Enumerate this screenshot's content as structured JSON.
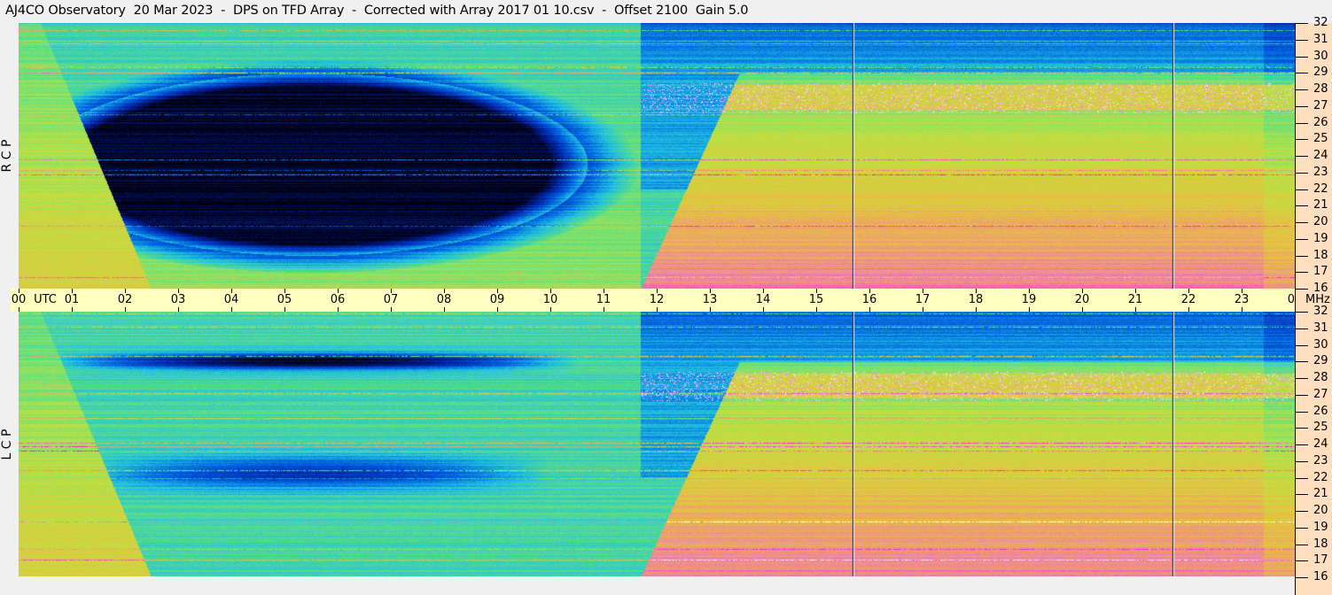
{
  "title": "AJ4CO Observatory  20 Mar 2023  -  DPS on TFD Array  -  Corrected with Array 2017 01 10.csv  -  Offset 2100  Gain 5.0",
  "chart_data": {
    "type": "heatmap",
    "title": "AJ4CO Observatory  20 Mar 2023  -  DPS on TFD Array  -  Corrected with Array 2017 01 10.csv  -  Offset 2100  Gain 5.0",
    "x_unit": "UTC",
    "y_unit": "MHz",
    "x_ticks": [
      "00",
      "01",
      "02",
      "03",
      "04",
      "05",
      "06",
      "07",
      "08",
      "09",
      "10",
      "11",
      "12",
      "13",
      "14",
      "15",
      "16",
      "17",
      "18",
      "19",
      "20",
      "21",
      "22",
      "23",
      "00"
    ],
    "xlim": [
      0,
      24
    ],
    "y_ticks": [
      16,
      17,
      18,
      19,
      20,
      21,
      22,
      23,
      24,
      25,
      26,
      27,
      28,
      29,
      30,
      31,
      32
    ],
    "ylim": [
      16,
      32
    ],
    "panels": [
      {
        "name": "R C P",
        "letters": [
          "R",
          "C",
          "P"
        ]
      },
      {
        "name": "L C P",
        "letters": [
          "L",
          "C",
          "P"
        ]
      }
    ],
    "colormap": [
      "#000010",
      "#0020a0",
      "#0060e0",
      "#20c0e0",
      "#60e080",
      "#c0e040",
      "#e8c040",
      "#f080a0",
      "#ff00ff",
      "#ffffff"
    ],
    "background_time_axis": "#ffffc0",
    "background_freq_axis": "#ffdfc0"
  }
}
